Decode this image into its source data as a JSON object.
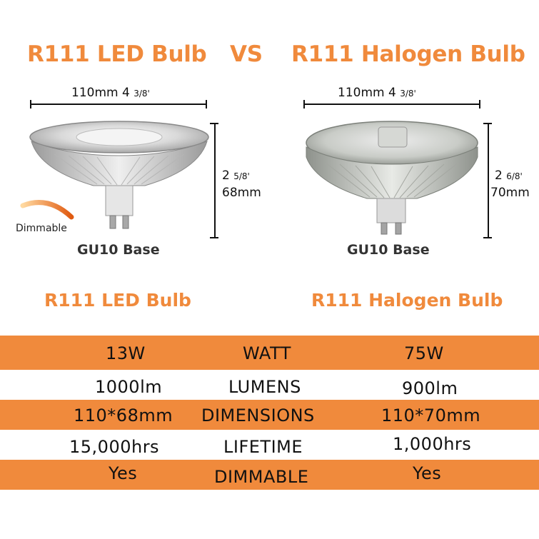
{
  "headline": {
    "left": "R111 LED Bulb",
    "vs": "VS",
    "right": "R111 Halogen Bulb"
  },
  "led": {
    "width_label": "110mm 4 ",
    "width_frac": "3/8'",
    "height_label_top": "2 ",
    "height_frac": "5/8'",
    "height_label_bottom": "68mm",
    "dimmable_badge": "Dimmable",
    "base_label": "GU10 Base",
    "title": "R111 LED Bulb"
  },
  "halogen": {
    "width_label": "110mm 4 ",
    "width_frac": "3/8'",
    "height_label_top": "2 ",
    "height_frac": "6/8'",
    "height_label_bottom": "70mm",
    "base_label": "GU10 Base",
    "title": "R111 Halogen Bulb"
  },
  "table": {
    "rows": [
      {
        "led": "13W",
        "label": "WATT",
        "halogen": "75W",
        "shaded": true
      },
      {
        "led": "1000lm",
        "label": "LUMENS",
        "halogen": "900lm",
        "shaded": false
      },
      {
        "led": "110*68mm",
        "label": "DIMENSIONS",
        "halogen": "110*70mm",
        "shaded": true
      },
      {
        "led": "15,000hrs",
        "label": "LIFETIME",
        "halogen": "1,000hrs",
        "shaded": false
      },
      {
        "led": "Yes",
        "label": "DIMMABLE",
        "halogen": "Yes",
        "shaded": true
      }
    ]
  },
  "colors": {
    "accent": "#f08a3c",
    "text": "#111111"
  }
}
